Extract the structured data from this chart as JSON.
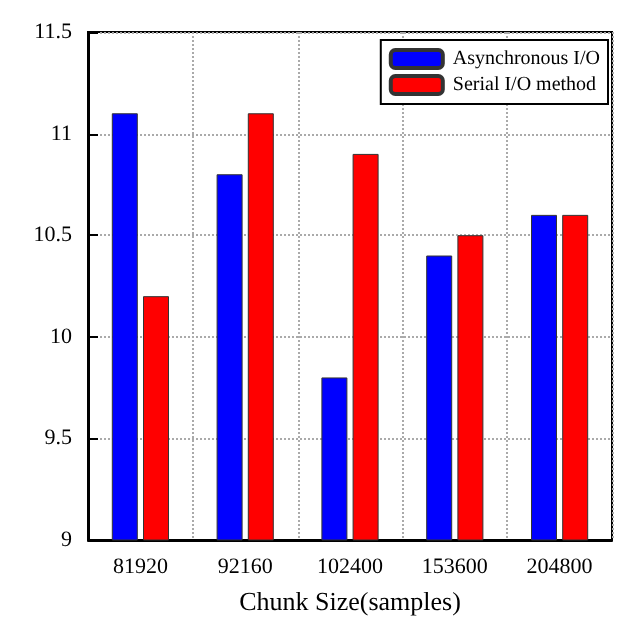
{
  "chart_data": {
    "type": "bar",
    "xlabel": "Chunk Size(samples)",
    "categories": [
      "81920",
      "92160",
      "102400",
      "153600",
      "204800"
    ],
    "series": [
      {
        "name": "Asynchronous I/O",
        "color": "#0000ff",
        "values": [
          11.1,
          10.8,
          9.8,
          10.4,
          10.6
        ]
      },
      {
        "name": "Serial I/O method",
        "color": "#ff0000",
        "values": [
          10.2,
          11.1,
          10.9,
          10.5,
          10.6
        ]
      }
    ],
    "ylim": [
      9,
      11.5
    ],
    "yticks": [
      9,
      9.5,
      10,
      10.5,
      11,
      11.5
    ],
    "grid": true,
    "legend": "top right"
  }
}
